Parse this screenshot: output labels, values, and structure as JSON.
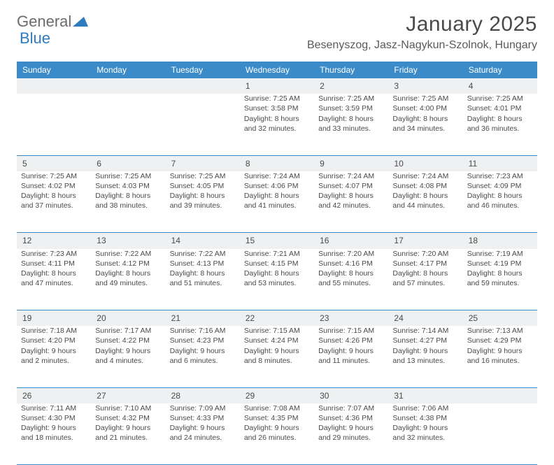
{
  "logo": {
    "text1": "General",
    "text2": "Blue",
    "color1": "#6b6b6b",
    "color2": "#2f7bbf",
    "triangle_color": "#2f7bbf"
  },
  "title": "January 2025",
  "location": "Besenyszog, Jasz-Nagykun-Szolnok, Hungary",
  "header_bg": "#3b8bc9",
  "daynum_bg": "#eef0f2",
  "border_color": "#3b8bc9",
  "text_color": "#4a4a4a",
  "font_size_cell": 10.5,
  "days_of_week": [
    "Sunday",
    "Monday",
    "Tuesday",
    "Wednesday",
    "Thursday",
    "Friday",
    "Saturday"
  ],
  "weeks": [
    {
      "nums": [
        "",
        "",
        "",
        "1",
        "2",
        "3",
        "4"
      ],
      "cells": [
        null,
        null,
        null,
        {
          "sunrise": "7:25 AM",
          "sunset": "3:58 PM",
          "daylight": "8 hours and 32 minutes."
        },
        {
          "sunrise": "7:25 AM",
          "sunset": "3:59 PM",
          "daylight": "8 hours and 33 minutes."
        },
        {
          "sunrise": "7:25 AM",
          "sunset": "4:00 PM",
          "daylight": "8 hours and 34 minutes."
        },
        {
          "sunrise": "7:25 AM",
          "sunset": "4:01 PM",
          "daylight": "8 hours and 36 minutes."
        }
      ]
    },
    {
      "nums": [
        "5",
        "6",
        "7",
        "8",
        "9",
        "10",
        "11"
      ],
      "cells": [
        {
          "sunrise": "7:25 AM",
          "sunset": "4:02 PM",
          "daylight": "8 hours and 37 minutes."
        },
        {
          "sunrise": "7:25 AM",
          "sunset": "4:03 PM",
          "daylight": "8 hours and 38 minutes."
        },
        {
          "sunrise": "7:25 AM",
          "sunset": "4:05 PM",
          "daylight": "8 hours and 39 minutes."
        },
        {
          "sunrise": "7:24 AM",
          "sunset": "4:06 PM",
          "daylight": "8 hours and 41 minutes."
        },
        {
          "sunrise": "7:24 AM",
          "sunset": "4:07 PM",
          "daylight": "8 hours and 42 minutes."
        },
        {
          "sunrise": "7:24 AM",
          "sunset": "4:08 PM",
          "daylight": "8 hours and 44 minutes."
        },
        {
          "sunrise": "7:23 AM",
          "sunset": "4:09 PM",
          "daylight": "8 hours and 46 minutes."
        }
      ]
    },
    {
      "nums": [
        "12",
        "13",
        "14",
        "15",
        "16",
        "17",
        "18"
      ],
      "cells": [
        {
          "sunrise": "7:23 AM",
          "sunset": "4:11 PM",
          "daylight": "8 hours and 47 minutes."
        },
        {
          "sunrise": "7:22 AM",
          "sunset": "4:12 PM",
          "daylight": "8 hours and 49 minutes."
        },
        {
          "sunrise": "7:22 AM",
          "sunset": "4:13 PM",
          "daylight": "8 hours and 51 minutes."
        },
        {
          "sunrise": "7:21 AM",
          "sunset": "4:15 PM",
          "daylight": "8 hours and 53 minutes."
        },
        {
          "sunrise": "7:20 AM",
          "sunset": "4:16 PM",
          "daylight": "8 hours and 55 minutes."
        },
        {
          "sunrise": "7:20 AM",
          "sunset": "4:17 PM",
          "daylight": "8 hours and 57 minutes."
        },
        {
          "sunrise": "7:19 AM",
          "sunset": "4:19 PM",
          "daylight": "8 hours and 59 minutes."
        }
      ]
    },
    {
      "nums": [
        "19",
        "20",
        "21",
        "22",
        "23",
        "24",
        "25"
      ],
      "cells": [
        {
          "sunrise": "7:18 AM",
          "sunset": "4:20 PM",
          "daylight": "9 hours and 2 minutes."
        },
        {
          "sunrise": "7:17 AM",
          "sunset": "4:22 PM",
          "daylight": "9 hours and 4 minutes."
        },
        {
          "sunrise": "7:16 AM",
          "sunset": "4:23 PM",
          "daylight": "9 hours and 6 minutes."
        },
        {
          "sunrise": "7:15 AM",
          "sunset": "4:24 PM",
          "daylight": "9 hours and 8 minutes."
        },
        {
          "sunrise": "7:15 AM",
          "sunset": "4:26 PM",
          "daylight": "9 hours and 11 minutes."
        },
        {
          "sunrise": "7:14 AM",
          "sunset": "4:27 PM",
          "daylight": "9 hours and 13 minutes."
        },
        {
          "sunrise": "7:13 AM",
          "sunset": "4:29 PM",
          "daylight": "9 hours and 16 minutes."
        }
      ]
    },
    {
      "nums": [
        "26",
        "27",
        "28",
        "29",
        "30",
        "31",
        ""
      ],
      "cells": [
        {
          "sunrise": "7:11 AM",
          "sunset": "4:30 PM",
          "daylight": "9 hours and 18 minutes."
        },
        {
          "sunrise": "7:10 AM",
          "sunset": "4:32 PM",
          "daylight": "9 hours and 21 minutes."
        },
        {
          "sunrise": "7:09 AM",
          "sunset": "4:33 PM",
          "daylight": "9 hours and 24 minutes."
        },
        {
          "sunrise": "7:08 AM",
          "sunset": "4:35 PM",
          "daylight": "9 hours and 26 minutes."
        },
        {
          "sunrise": "7:07 AM",
          "sunset": "4:36 PM",
          "daylight": "9 hours and 29 minutes."
        },
        {
          "sunrise": "7:06 AM",
          "sunset": "4:38 PM",
          "daylight": "9 hours and 32 minutes."
        },
        null
      ]
    }
  ],
  "labels": {
    "sunrise": "Sunrise:",
    "sunset": "Sunset:",
    "daylight": "Daylight:"
  }
}
